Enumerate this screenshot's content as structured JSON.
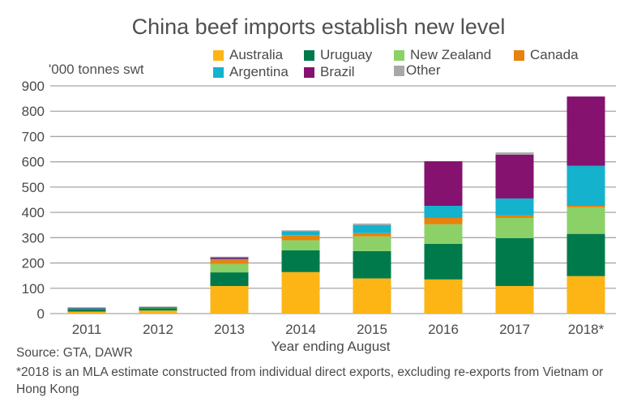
{
  "chart_data": {
    "type": "bar",
    "stacked": true,
    "title": "China beef imports establish new level",
    "ylabel": "'000 tonnes swt",
    "xlabel": "Year ending August",
    "ylim": [
      0,
      900
    ],
    "yticks": [
      0,
      100,
      200,
      300,
      400,
      500,
      600,
      700,
      800,
      900
    ],
    "grid": true,
    "legend_position": "top-right",
    "categories": [
      "2011",
      "2012",
      "2013",
      "2014",
      "2015",
      "2016",
      "2017",
      "2018*"
    ],
    "series": [
      {
        "name": "Australia",
        "color": "#fdb515",
        "values": [
          8,
          12,
          109,
          164,
          139,
          135,
          109,
          148
        ]
      },
      {
        "name": "Uruguay",
        "color": "#007a4b",
        "values": [
          10,
          10,
          54,
          86,
          108,
          141,
          189,
          167
        ]
      },
      {
        "name": "New Zealand",
        "color": "#8bd168",
        "values": [
          2,
          2,
          33,
          40,
          58,
          77,
          80,
          105
        ]
      },
      {
        "name": "Canada",
        "color": "#e8820c",
        "values": [
          0,
          0,
          16,
          20,
          13,
          25,
          10,
          6
        ]
      },
      {
        "name": "Argentina",
        "color": "#14b2cc",
        "values": [
          1,
          1,
          4,
          16,
          32,
          48,
          67,
          158
        ]
      },
      {
        "name": "Brazil",
        "color": "#85126f",
        "values": [
          3,
          2,
          6,
          0,
          0,
          176,
          173,
          274
        ]
      },
      {
        "name": "Other",
        "color": "#a8a8a8",
        "values": [
          1,
          1,
          3,
          3,
          6,
          0,
          9,
          0
        ]
      }
    ]
  },
  "footer": {
    "source": "Source: GTA, DAWR",
    "note": "*2018 is an MLA estimate constructed from individual direct exports, excluding re-exports from Vietnam or Hong Kong"
  }
}
